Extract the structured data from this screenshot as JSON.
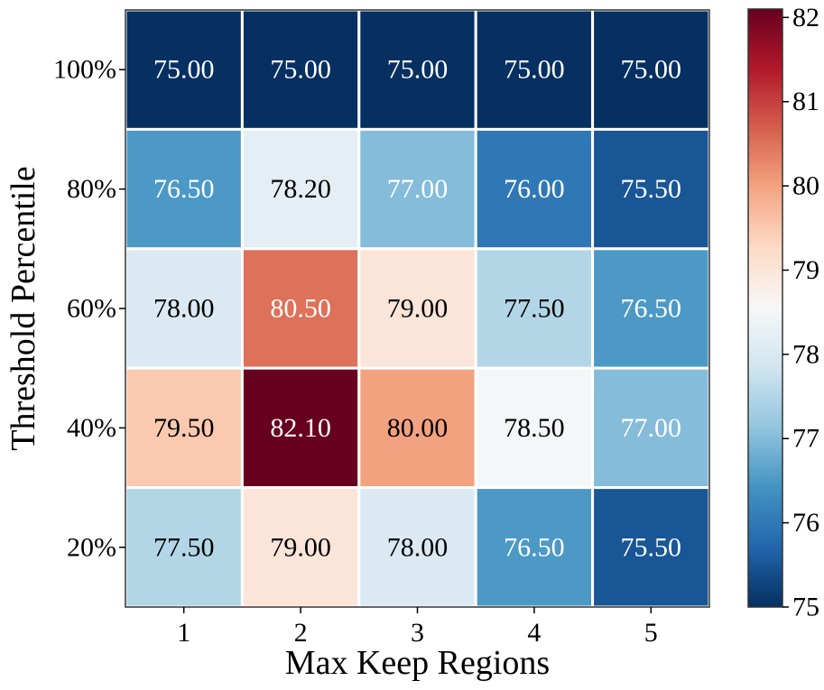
{
  "chart_data": {
    "type": "heatmap",
    "title": "",
    "xlabel": "Max Keep Regions",
    "ylabel": "Threshold Percentile",
    "x_categories": [
      "1",
      "2",
      "3",
      "4",
      "5"
    ],
    "y_categories": [
      "100%",
      "80%",
      "60%",
      "40%",
      "20%"
    ],
    "values": [
      [
        75.0,
        75.0,
        75.0,
        75.0,
        75.0
      ],
      [
        76.5,
        78.2,
        77.0,
        76.0,
        75.5
      ],
      [
        78.0,
        80.5,
        79.0,
        77.5,
        76.5
      ],
      [
        79.5,
        82.1,
        80.0,
        78.5,
        77.0
      ],
      [
        77.5,
        79.0,
        78.0,
        76.5,
        75.5
      ]
    ],
    "cell_labels": [
      [
        "75.00",
        "75.00",
        "75.00",
        "75.00",
        "75.00"
      ],
      [
        "76.50",
        "78.20",
        "77.00",
        "76.00",
        "75.50"
      ],
      [
        "78.00",
        "80.50",
        "79.00",
        "77.50",
        "76.50"
      ],
      [
        "79.50",
        "82.10",
        "80.00",
        "78.50",
        "77.00"
      ],
      [
        "77.50",
        "79.00",
        "78.00",
        "76.50",
        "75.50"
      ]
    ],
    "colormap": "RdBu_r",
    "vmin": 75.0,
    "vmax": 82.1,
    "colorbar": {
      "ticks": [
        75,
        76,
        77,
        78,
        79,
        80,
        81,
        82
      ],
      "tick_labels": [
        "75",
        "76",
        "77",
        "78",
        "79",
        "80",
        "81",
        "82"
      ]
    },
    "colormap_stops": [
      "#053061",
      "#2166ac",
      "#4393c3",
      "#92c5de",
      "#d1e5f0",
      "#f7f7f7",
      "#fddbc7",
      "#f4a582",
      "#d6604d",
      "#b2182b",
      "#67001f"
    ],
    "grid_line_color": "#ffffff",
    "frame_color": "#333333"
  }
}
